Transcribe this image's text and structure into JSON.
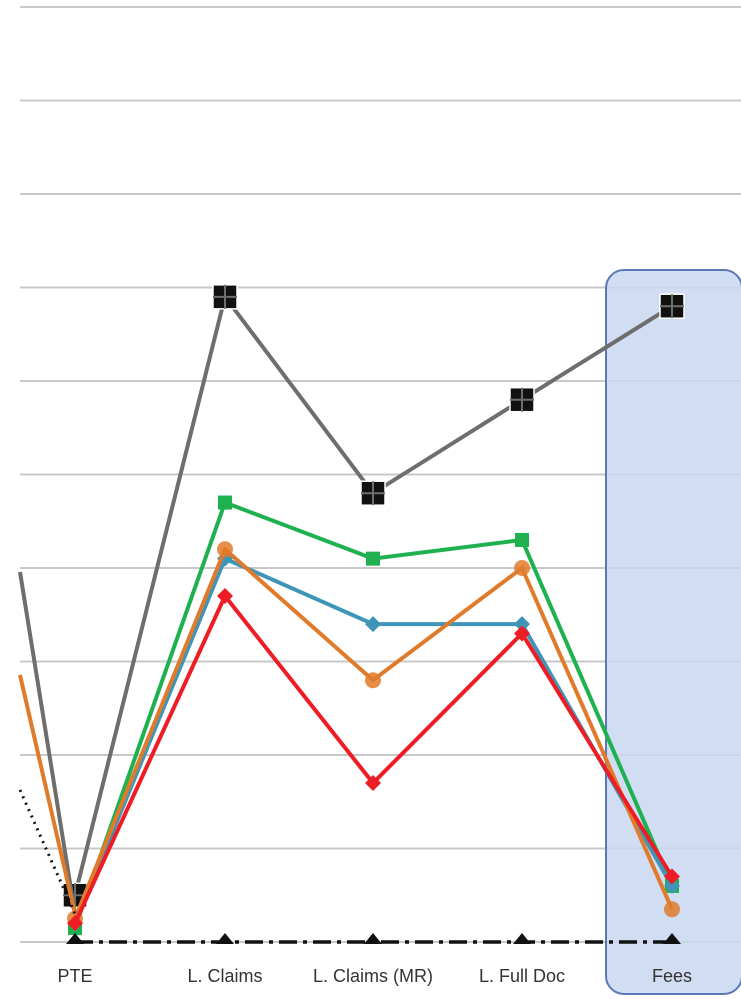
{
  "chart_data": {
    "type": "line",
    "title": "",
    "xlabel": "",
    "ylabel": "",
    "grid": true,
    "categories": [
      "PTE",
      "L. Claims",
      "L. Claims (MR)",
      "L. Full Doc",
      "Fees"
    ],
    "highlight": {
      "category": "Fees",
      "color": "#c9d7f0",
      "border": "#5a78b8"
    },
    "ylim": [
      0,
      10
    ],
    "series": [
      {
        "color": "#6e6e6e",
        "marker": "square",
        "values": [
          0.5,
          6.9,
          4.8,
          5.8,
          6.8
        ]
      },
      {
        "color": "#1fb14f",
        "marker": "square",
        "values": [
          0.15,
          4.7,
          4.1,
          4.3,
          0.6
        ]
      },
      {
        "color": "#3f95b8",
        "marker": "diamond",
        "values": [
          0.2,
          4.1,
          3.4,
          3.4,
          0.6
        ]
      },
      {
        "color": "#e07b2c",
        "marker": "circle",
        "values": [
          0.25,
          4.2,
          2.8,
          4.0,
          0.35
        ]
      },
      {
        "color": "#ee1c24",
        "marker": "diamond",
        "values": [
          0.2,
          3.7,
          1.7,
          3.3,
          0.7
        ]
      },
      {
        "color": "#111111",
        "marker": "triangle",
        "dash": "dashdot",
        "values": [
          0,
          0,
          0,
          0,
          0
        ]
      }
    ]
  }
}
